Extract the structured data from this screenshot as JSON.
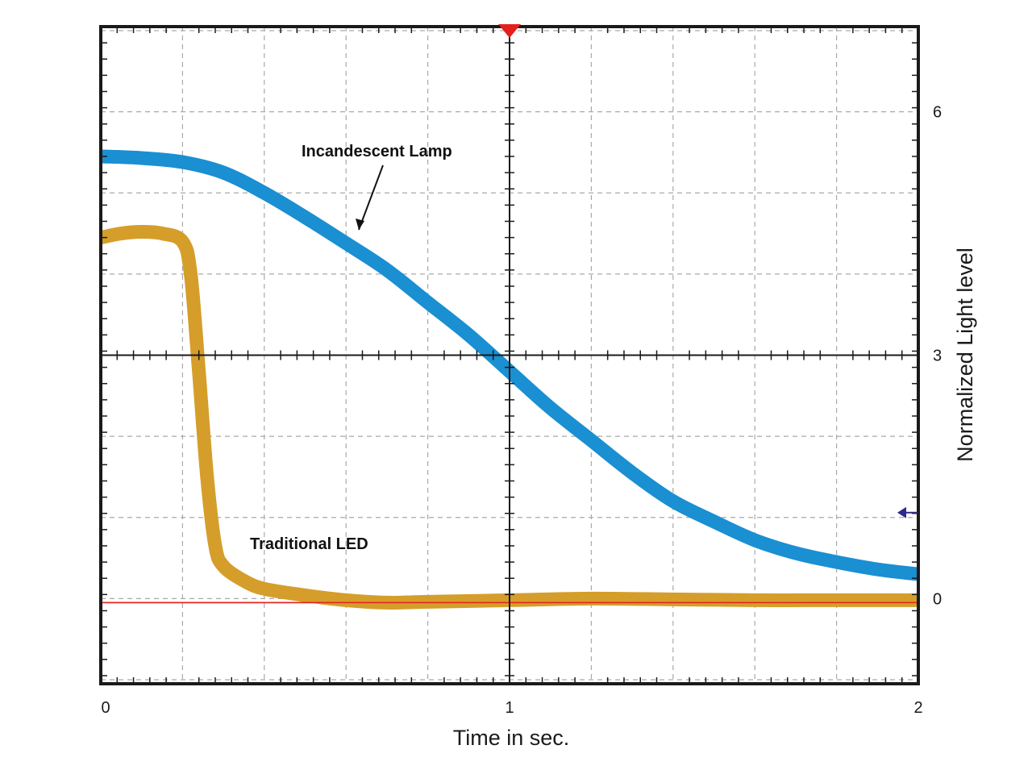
{
  "chart_data": {
    "type": "line",
    "title": "",
    "xlabel": "Time in sec.",
    "ylabel": "Normalized  Light level",
    "xlim": [
      0,
      2
    ],
    "ylim": [
      -1.05,
      7.05
    ],
    "x_tick_labels": [
      {
        "value": 0,
        "label": "0"
      },
      {
        "value": 1,
        "label": "1"
      },
      {
        "value": 2,
        "label": "2"
      }
    ],
    "y_tick_labels": [
      {
        "value": 0,
        "label": "0"
      },
      {
        "value": 3,
        "label": "3"
      },
      {
        "value": 6,
        "label": "6"
      }
    ],
    "grid": true,
    "major_x_step": 0.2,
    "major_y_step": 1,
    "reference_line": {
      "y": -0.05,
      "color": "#e3211c"
    },
    "series": [
      {
        "label": "Incandescent Lamp",
        "color": "#1a8fd2",
        "x": [
          0,
          0.1,
          0.2,
          0.3,
          0.4,
          0.5,
          0.6,
          0.7,
          0.8,
          0.9,
          1.0,
          1.1,
          1.2,
          1.3,
          1.4,
          1.5,
          1.6,
          1.7,
          1.8,
          1.9,
          2.0
        ],
        "y": [
          5.45,
          5.43,
          5.38,
          5.25,
          5.0,
          4.7,
          4.38,
          4.05,
          3.65,
          3.25,
          2.8,
          2.35,
          1.95,
          1.55,
          1.2,
          0.95,
          0.72,
          0.56,
          0.45,
          0.36,
          0.3
        ]
      },
      {
        "label": "Traditional LED",
        "color": "#d59e2a",
        "x": [
          0,
          0.05,
          0.1,
          0.15,
          0.2,
          0.22,
          0.24,
          0.26,
          0.28,
          0.3,
          0.35,
          0.4,
          0.5,
          0.6,
          0.7,
          0.8,
          1.0,
          1.2,
          1.4,
          1.6,
          1.8,
          2.0
        ],
        "y": [
          4.45,
          4.5,
          4.52,
          4.5,
          4.4,
          4.0,
          2.8,
          1.5,
          0.65,
          0.4,
          0.22,
          0.12,
          0.04,
          -0.02,
          -0.05,
          -0.04,
          -0.02,
          0.0,
          -0.01,
          -0.02,
          -0.02,
          -0.02
        ]
      }
    ],
    "annotations": [
      {
        "text": "Incandescent Lamp",
        "target_series": "Incandescent Lamp"
      },
      {
        "text": "Traditional LED",
        "target_series": "Traditional LED"
      }
    ],
    "markers": [
      {
        "name": "trigger-marker",
        "color": "#e3211c",
        "x": 1.0
      },
      {
        "name": "level-marker",
        "color": "#2c2a8c",
        "y": 1.0
      }
    ]
  }
}
